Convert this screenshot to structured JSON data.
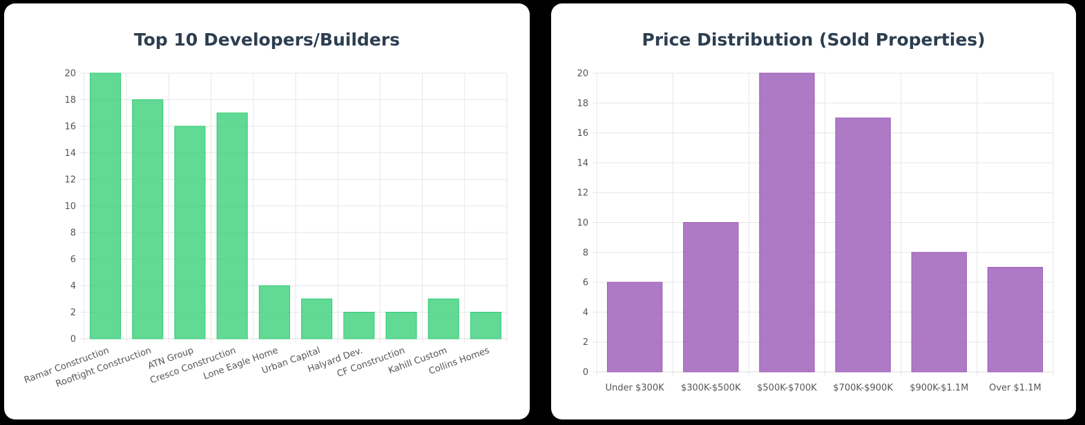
{
  "colors": {
    "page_background": "#000000",
    "card_background": "#ffffff",
    "title": "#2c3e50",
    "grid": "#e6e6e6",
    "tick_text": "#555555"
  },
  "chart_data": [
    {
      "type": "bar",
      "title": "Top 10 Developers/Builders",
      "categories": [
        "Ramar Construction",
        "Rooftight Construction",
        "ATN Group",
        "Cresco Construction",
        "Lone Eagle Home",
        "Urban Capital",
        "Halyard Dev.",
        "CF Construction",
        "Kahill Custom",
        "Collins Homes"
      ],
      "values": [
        20,
        18,
        16,
        17,
        4,
        3,
        2,
        2,
        3,
        2
      ],
      "ylim": [
        0,
        20
      ],
      "yticks": [
        0,
        2,
        4,
        6,
        8,
        10,
        12,
        14,
        16,
        18,
        20
      ],
      "grid": true,
      "bar_color": "#2ecc71",
      "bar_opacity": 0.75,
      "legend": "none",
      "xlabel": "",
      "ylabel": ""
    },
    {
      "type": "bar",
      "title": "Price Distribution (Sold Properties)",
      "categories": [
        "Under $300K",
        "$300K-$500K",
        "$500K-$700K",
        "$700K-$900K",
        "$900K-$1.1M",
        "Over $1.1M"
      ],
      "values": [
        6,
        10,
        20,
        17,
        8,
        7
      ],
      "ylim": [
        0,
        20
      ],
      "yticks": [
        0,
        2,
        4,
        6,
        8,
        10,
        12,
        14,
        16,
        18,
        20
      ],
      "grid": true,
      "bar_color": "#9b59b6",
      "bar_opacity": 0.8,
      "legend": "none",
      "xlabel": "",
      "ylabel": ""
    }
  ]
}
